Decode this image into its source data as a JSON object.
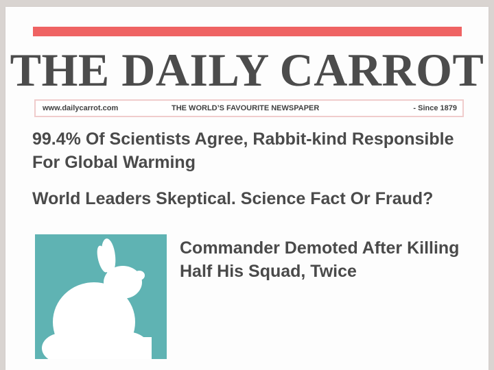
{
  "masthead": {
    "title": "THE DAILY CARROT",
    "website": "www.dailycarrot.com",
    "tagline": "THE WORLD’S FAVOURITE NEWSPAPER",
    "since": "- Since 1879"
  },
  "articles": [
    {
      "headline": "99.4% Of Scientists Agree, Rabbit-kind Responsible For Global Warming"
    },
    {
      "headline": "World Leaders Skeptical. Science Fact Or Fraud?"
    },
    {
      "headline": "Commander Demoted After Killing Half His Squad, Twice"
    }
  ],
  "photo": {
    "icon": "rabbit-silhouette-icon",
    "background": "#5fb3b3"
  },
  "colors": {
    "accent": "#ef6363",
    "text": "#4a4a4a",
    "strip_border": "#f0cccc"
  }
}
